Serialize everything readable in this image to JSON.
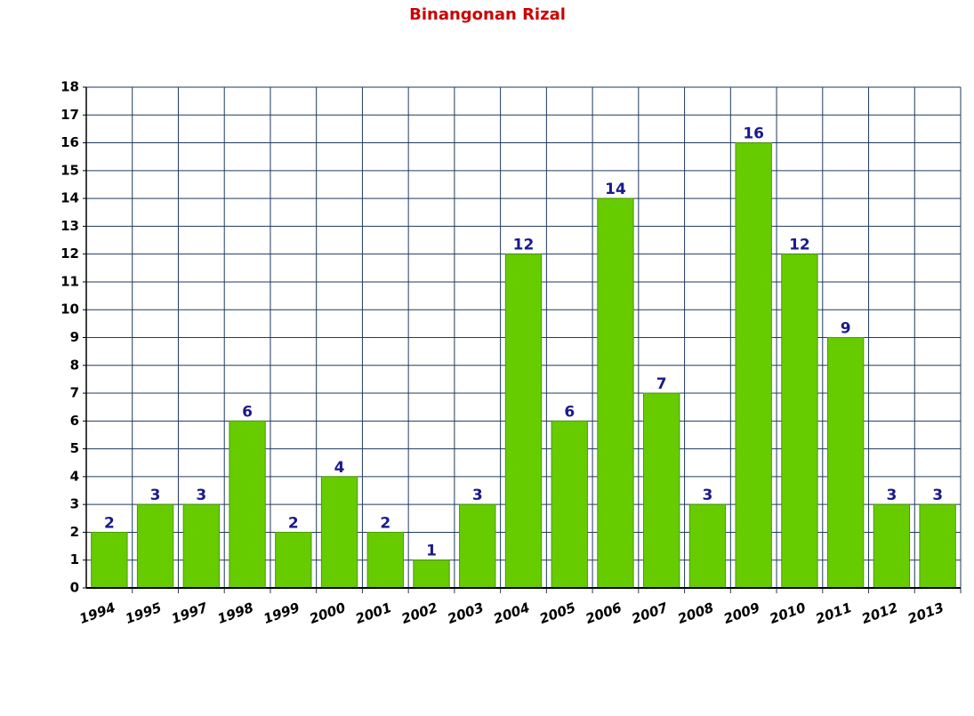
{
  "chart_data": {
    "type": "bar",
    "title": "Binangonan Rizal",
    "categories": [
      "1994",
      "1995",
      "1997",
      "1998",
      "1999",
      "2000",
      "2001",
      "2002",
      "2003",
      "2004",
      "2005",
      "2006",
      "2007",
      "2008",
      "2009",
      "2010",
      "2011",
      "2012",
      "2013"
    ],
    "values": [
      2,
      3,
      3,
      6,
      2,
      4,
      2,
      1,
      3,
      12,
      6,
      14,
      7,
      3,
      16,
      12,
      9,
      3,
      3
    ],
    "color": "#66cc00",
    "ylim": [
      0,
      18
    ],
    "yticks": [
      0,
      1,
      2,
      3,
      4,
      5,
      6,
      7,
      8,
      9,
      10,
      11,
      12,
      13,
      14,
      15,
      16,
      17,
      18
    ],
    "grid": true
  }
}
